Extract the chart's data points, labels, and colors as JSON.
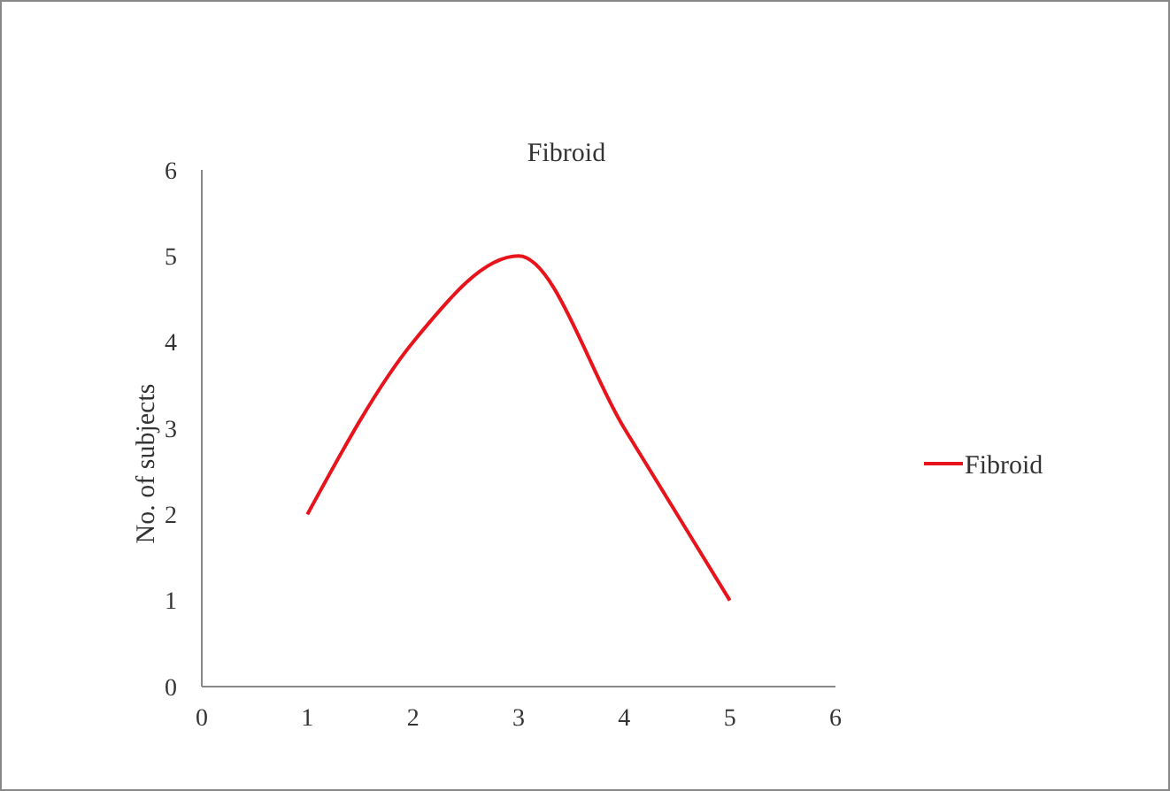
{
  "chart_data": {
    "type": "line",
    "title": "Fibroid",
    "ylabel": "No. of subjects",
    "x": [
      1,
      2,
      3,
      4,
      5
    ],
    "series": [
      {
        "name": "Fibroid",
        "color": "#e8141c",
        "values": [
          2,
          4,
          5,
          3,
          1
        ]
      }
    ],
    "xlim": [
      0,
      6
    ],
    "xticks": [
      0,
      1,
      2,
      3,
      4,
      5,
      6
    ],
    "ylim": [
      0,
      6
    ],
    "yticks": [
      0,
      1,
      2,
      3,
      4,
      5,
      6
    ],
    "grid": false,
    "legend": "right",
    "marker": "none",
    "line_style": "solid"
  }
}
